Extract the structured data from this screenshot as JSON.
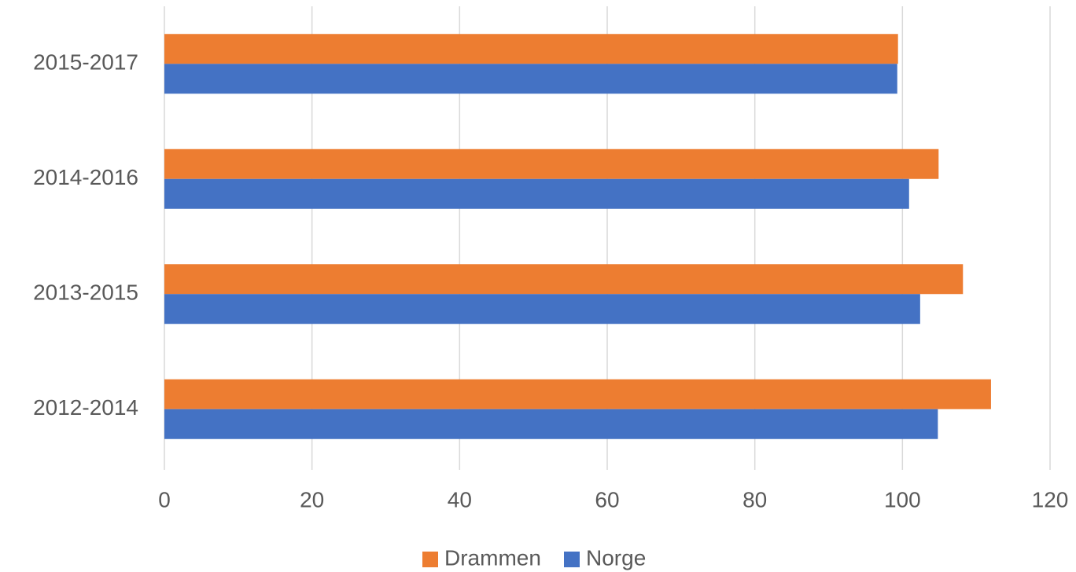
{
  "chart_data": {
    "type": "bar",
    "orientation": "horizontal",
    "categories": [
      "2015-2017",
      "2014-2016",
      "2013-2015",
      "2012-2014"
    ],
    "series": [
      {
        "name": "Drammen",
        "color": "#ed7d31",
        "values": [
          99.4,
          104.9,
          108.2,
          112.0
        ]
      },
      {
        "name": "Norge",
        "color": "#4472c4",
        "values": [
          99.3,
          100.9,
          102.4,
          104.8
        ]
      }
    ],
    "xlim": [
      0,
      120
    ],
    "xticks": [
      0,
      20,
      40,
      60,
      80,
      100,
      120
    ],
    "grid": true,
    "legend": "bottom"
  }
}
